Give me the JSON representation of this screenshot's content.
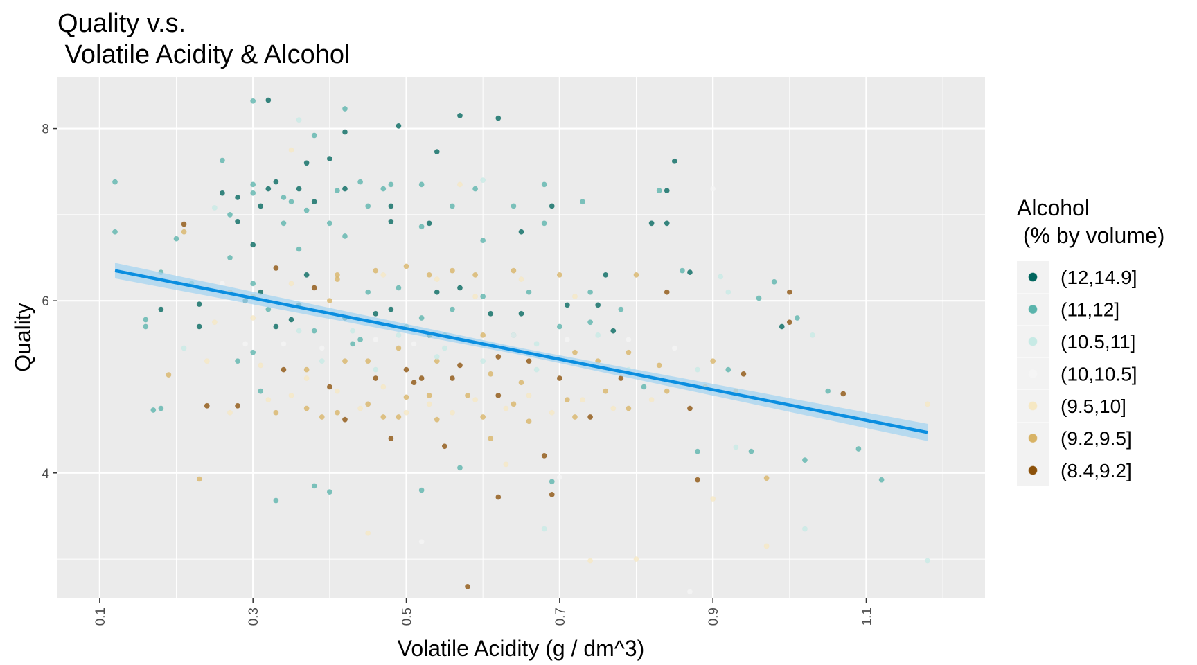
{
  "chart_data": {
    "type": "scatter",
    "title_line1": "Quality v.s.",
    "title_line2": " Volatile Acidity & Alcohol",
    "xlabel": "Volatile Acidity (g / dm^3)",
    "ylabel": "Quality",
    "xlim": [
      0.045,
      1.255
    ],
    "ylim": [
      2.55,
      8.6
    ],
    "x_ticks": [
      0.1,
      0.3,
      0.5,
      0.7,
      0.9,
      1.1
    ],
    "x_tick_labels": [
      "0.1",
      "0.3",
      "0.5",
      "0.7",
      "0.9",
      "1.1"
    ],
    "y_ticks": [
      4,
      6,
      8
    ],
    "y_tick_labels": [
      "4",
      "6",
      "8"
    ],
    "grid": true,
    "legend": {
      "title_line1": "Alcohol",
      "title_line2": " (% by volume)",
      "position": "right",
      "entries": [
        {
          "label": "(12,14.9]",
          "color": "#01665e"
        },
        {
          "label": "(11,12]",
          "color": "#5ab4ac"
        },
        {
          "label": "(10.5,11]",
          "color": "#c7eae5"
        },
        {
          "label": "(10,10.5]",
          "color": "#f5f5f5"
        },
        {
          "label": "(9.5,10]",
          "color": "#f6e8c3"
        },
        {
          "label": "(9.2,9.5]",
          "color": "#d8b365"
        },
        {
          "label": "(8.4,9.2]",
          "color": "#8c510a"
        }
      ]
    },
    "trend_line": {
      "color": "#0a8ee0",
      "band_color": "#a6d4f0",
      "x": [
        0.12,
        1.18
      ],
      "y": [
        6.35,
        4.47
      ],
      "band_halfwidth": [
        0.09,
        0.04,
        0.1
      ]
    },
    "points": [
      [
        0.12,
        7.38,
        1
      ],
      [
        0.12,
        6.8,
        1
      ],
      [
        0.16,
        5.7,
        1
      ],
      [
        0.16,
        5.78,
        1
      ],
      [
        0.18,
        6.33,
        1
      ],
      [
        0.18,
        4.75,
        1
      ],
      [
        0.18,
        5.9,
        0
      ],
      [
        0.17,
        4.73,
        1
      ],
      [
        0.2,
        6.72,
        1
      ],
      [
        0.21,
        6.89,
        6
      ],
      [
        0.21,
        6.8,
        5
      ],
      [
        0.22,
        6.2,
        1
      ],
      [
        0.19,
        5.14,
        5
      ],
      [
        0.23,
        5.96,
        0
      ],
      [
        0.23,
        5.7,
        0
      ],
      [
        0.24,
        4.78,
        6
      ],
      [
        0.23,
        3.93,
        5
      ],
      [
        0.26,
        7.63,
        1
      ],
      [
        0.25,
        7.08,
        2
      ],
      [
        0.26,
        7.25,
        0
      ],
      [
        0.27,
        7.0,
        1
      ],
      [
        0.28,
        6.92,
        0
      ],
      [
        0.28,
        7.2,
        0
      ],
      [
        0.27,
        6.5,
        1
      ],
      [
        0.27,
        6.1,
        5
      ],
      [
        0.28,
        5.3,
        1
      ],
      [
        0.28,
        4.78,
        6
      ],
      [
        0.3,
        8.32,
        1
      ],
      [
        0.32,
        8.33,
        0
      ],
      [
        0.3,
        7.35,
        1
      ],
      [
        0.31,
        7.1,
        0
      ],
      [
        0.3,
        7.25,
        1
      ],
      [
        0.32,
        7.3,
        0
      ],
      [
        0.33,
        7.38,
        0
      ],
      [
        0.34,
        7.2,
        1
      ],
      [
        0.34,
        6.9,
        1
      ],
      [
        0.3,
        6.65,
        0
      ],
      [
        0.33,
        6.38,
        6
      ],
      [
        0.3,
        6.2,
        1
      ],
      [
        0.31,
        6.1,
        0
      ],
      [
        0.32,
        5.9,
        1
      ],
      [
        0.33,
        5.7,
        0
      ],
      [
        0.29,
        6.0,
        0
      ],
      [
        0.3,
        5.4,
        1
      ],
      [
        0.31,
        4.95,
        1
      ],
      [
        0.33,
        4.7,
        5
      ],
      [
        0.33,
        3.68,
        1
      ],
      [
        0.34,
        5.2,
        6
      ],
      [
        0.36,
        8.1,
        2
      ],
      [
        0.37,
        7.6,
        0
      ],
      [
        0.38,
        7.92,
        1
      ],
      [
        0.35,
        7.15,
        1
      ],
      [
        0.36,
        7.3,
        0
      ],
      [
        0.37,
        7.05,
        1
      ],
      [
        0.38,
        7.15,
        0
      ],
      [
        0.36,
        6.6,
        1
      ],
      [
        0.37,
        6.3,
        0
      ],
      [
        0.38,
        6.15,
        6
      ],
      [
        0.36,
        5.95,
        0
      ],
      [
        0.35,
        5.78,
        0
      ],
      [
        0.38,
        5.65,
        1
      ],
      [
        0.37,
        5.2,
        5
      ],
      [
        0.37,
        4.75,
        5
      ],
      [
        0.39,
        4.65,
        5
      ],
      [
        0.38,
        3.85,
        1
      ],
      [
        0.4,
        7.65,
        0
      ],
      [
        0.41,
        7.28,
        1
      ],
      [
        0.42,
        7.3,
        0
      ],
      [
        0.4,
        6.9,
        1
      ],
      [
        0.42,
        6.75,
        1
      ],
      [
        0.41,
        6.3,
        5
      ],
      [
        0.4,
        6.0,
        5
      ],
      [
        0.42,
        5.8,
        0
      ],
      [
        0.43,
        5.5,
        1
      ],
      [
        0.42,
        5.3,
        5
      ],
      [
        0.4,
        5.0,
        6
      ],
      [
        0.41,
        4.7,
        5
      ],
      [
        0.42,
        4.62,
        6
      ],
      [
        0.4,
        3.78,
        1
      ],
      [
        0.42,
        8.23,
        1
      ],
      [
        0.42,
        7.96,
        0
      ],
      [
        0.44,
        7.38,
        1
      ],
      [
        0.45,
        7.1,
        1
      ],
      [
        0.46,
        6.35,
        5
      ],
      [
        0.45,
        6.1,
        1
      ],
      [
        0.46,
        5.85,
        0
      ],
      [
        0.44,
        5.55,
        1
      ],
      [
        0.45,
        5.3,
        5
      ],
      [
        0.46,
        5.1,
        6
      ],
      [
        0.45,
        4.8,
        5
      ],
      [
        0.47,
        4.65,
        5
      ],
      [
        0.47,
        7.3,
        1
      ],
      [
        0.48,
        7.35,
        1
      ],
      [
        0.48,
        7.1,
        0
      ],
      [
        0.48,
        6.92,
        0
      ],
      [
        0.49,
        8.03,
        0
      ],
      [
        0.5,
        6.4,
        5
      ],
      [
        0.49,
        6.15,
        1
      ],
      [
        0.48,
        5.9,
        0
      ],
      [
        0.5,
        5.7,
        1
      ],
      [
        0.49,
        5.45,
        5
      ],
      [
        0.5,
        5.2,
        6
      ],
      [
        0.51,
        5.05,
        6
      ],
      [
        0.5,
        4.88,
        5
      ],
      [
        0.49,
        4.65,
        5
      ],
      [
        0.48,
        4.4,
        6
      ],
      [
        0.52,
        7.35,
        1
      ],
      [
        0.53,
        6.9,
        0
      ],
      [
        0.52,
        6.86,
        1
      ],
      [
        0.53,
        6.3,
        5
      ],
      [
        0.54,
        6.1,
        0
      ],
      [
        0.52,
        5.8,
        1
      ],
      [
        0.53,
        5.6,
        0
      ],
      [
        0.54,
        5.3,
        5
      ],
      [
        0.52,
        5.1,
        6
      ],
      [
        0.53,
        4.9,
        5
      ],
      [
        0.54,
        4.62,
        5
      ],
      [
        0.52,
        3.8,
        1
      ],
      [
        0.54,
        7.73,
        0
      ],
      [
        0.56,
        7.1,
        1
      ],
      [
        0.57,
        8.15,
        0
      ],
      [
        0.56,
        6.35,
        5
      ],
      [
        0.57,
        6.15,
        0
      ],
      [
        0.56,
        5.9,
        1
      ],
      [
        0.55,
        5.6,
        1
      ],
      [
        0.57,
        5.25,
        6
      ],
      [
        0.56,
        5.1,
        6
      ],
      [
        0.58,
        4.9,
        5
      ],
      [
        0.55,
        4.31,
        6
      ],
      [
        0.58,
        2.68,
        6
      ],
      [
        0.57,
        4.06,
        1
      ],
      [
        0.59,
        7.3,
        1
      ],
      [
        0.6,
        6.7,
        1
      ],
      [
        0.59,
        6.3,
        5
      ],
      [
        0.6,
        6.05,
        1
      ],
      [
        0.61,
        5.85,
        0
      ],
      [
        0.62,
        8.12,
        0
      ],
      [
        0.6,
        5.6,
        5
      ],
      [
        0.62,
        5.35,
        6
      ],
      [
        0.61,
        5.15,
        5
      ],
      [
        0.62,
        4.9,
        6
      ],
      [
        0.6,
        4.65,
        5
      ],
      [
        0.61,
        4.4,
        5
      ],
      [
        0.62,
        3.72,
        6
      ],
      [
        0.64,
        7.1,
        1
      ],
      [
        0.65,
        6.8,
        0
      ],
      [
        0.64,
        6.35,
        5
      ],
      [
        0.66,
        6.1,
        1
      ],
      [
        0.65,
        5.85,
        0
      ],
      [
        0.64,
        5.6,
        1
      ],
      [
        0.66,
        5.3,
        6
      ],
      [
        0.65,
        5.05,
        5
      ],
      [
        0.64,
        4.8,
        5
      ],
      [
        0.66,
        4.6,
        5
      ],
      [
        0.68,
        7.35,
        1
      ],
      [
        0.69,
        7.1,
        0
      ],
      [
        0.68,
        6.9,
        1
      ],
      [
        0.68,
        4.2,
        6
      ],
      [
        0.69,
        3.75,
        6
      ],
      [
        0.69,
        3.9,
        1
      ],
      [
        0.7,
        6.3,
        5
      ],
      [
        0.71,
        5.95,
        0
      ],
      [
        0.7,
        5.7,
        1
      ],
      [
        0.72,
        5.4,
        5
      ],
      [
        0.7,
        5.1,
        6
      ],
      [
        0.71,
        4.85,
        5
      ],
      [
        0.72,
        4.65,
        5
      ],
      [
        0.73,
        7.15,
        1
      ],
      [
        0.74,
        6.1,
        1
      ],
      [
        0.75,
        5.95,
        0
      ],
      [
        0.74,
        5.75,
        1
      ],
      [
        0.75,
        5.3,
        5
      ],
      [
        0.76,
        4.95,
        5
      ],
      [
        0.74,
        4.65,
        6
      ],
      [
        0.76,
        6.3,
        0
      ],
      [
        0.77,
        5.65,
        0
      ],
      [
        0.78,
        5.9,
        1
      ],
      [
        0.79,
        5.4,
        5
      ],
      [
        0.78,
        5.1,
        6
      ],
      [
        0.79,
        4.75,
        5
      ],
      [
        0.8,
        6.3,
        5
      ],
      [
        0.81,
        5.0,
        1
      ],
      [
        0.82,
        6.9,
        0
      ],
      [
        0.83,
        7.28,
        1
      ],
      [
        0.84,
        7.28,
        0
      ],
      [
        0.84,
        6.9,
        0
      ],
      [
        0.85,
        7.62,
        0
      ],
      [
        0.84,
        6.1,
        6
      ],
      [
        0.83,
        5.25,
        5
      ],
      [
        0.84,
        4.95,
        5
      ],
      [
        0.86,
        6.35,
        1
      ],
      [
        0.87,
        6.33,
        0
      ],
      [
        0.87,
        4.75,
        6
      ],
      [
        0.88,
        4.25,
        1
      ],
      [
        0.88,
        3.92,
        6
      ],
      [
        0.89,
        5.0,
        5
      ],
      [
        0.9,
        5.3,
        5
      ],
      [
        0.91,
        6.28,
        2
      ],
      [
        0.92,
        6.1,
        2
      ],
      [
        0.92,
        5.2,
        1
      ],
      [
        0.93,
        4.95,
        5
      ],
      [
        0.94,
        5.15,
        6
      ],
      [
        0.95,
        4.25,
        1
      ],
      [
        0.96,
        6.03,
        1
      ],
      [
        0.97,
        3.94,
        5
      ],
      [
        0.98,
        6.22,
        1
      ],
      [
        0.99,
        5.7,
        0
      ],
      [
        1.0,
        6.1,
        6
      ],
      [
        1.0,
        5.75,
        6
      ],
      [
        1.01,
        5.8,
        1
      ],
      [
        1.02,
        4.15,
        1
      ],
      [
        1.03,
        5.6,
        2
      ],
      [
        1.05,
        4.95,
        1
      ],
      [
        1.07,
        4.92,
        6
      ],
      [
        1.09,
        4.28,
        1
      ],
      [
        1.12,
        3.92,
        1
      ],
      [
        1.18,
        2.98,
        2
      ],
      [
        1.18,
        4.8,
        4
      ],
      [
        0.21,
        5.45,
        2
      ],
      [
        0.24,
        5.3,
        4
      ],
      [
        0.25,
        5.75,
        4
      ],
      [
        0.26,
        6.2,
        3
      ],
      [
        0.27,
        4.7,
        4
      ],
      [
        0.29,
        5.5,
        3
      ],
      [
        0.31,
        5.25,
        4
      ],
      [
        0.32,
        4.85,
        4
      ],
      [
        0.34,
        5.5,
        3
      ],
      [
        0.35,
        4.9,
        4
      ],
      [
        0.36,
        5.65,
        2
      ],
      [
        0.37,
        5.1,
        4
      ],
      [
        0.39,
        5.45,
        3
      ],
      [
        0.41,
        4.95,
        4
      ],
      [
        0.43,
        5.65,
        2
      ],
      [
        0.44,
        4.75,
        4
      ],
      [
        0.46,
        5.55,
        3
      ],
      [
        0.47,
        5.0,
        4
      ],
      [
        0.49,
        5.6,
        2
      ],
      [
        0.5,
        4.7,
        4
      ],
      [
        0.51,
        5.5,
        3
      ],
      [
        0.53,
        4.8,
        4
      ],
      [
        0.55,
        5.45,
        2
      ],
      [
        0.56,
        4.7,
        4
      ],
      [
        0.58,
        5.55,
        3
      ],
      [
        0.59,
        4.85,
        4
      ],
      [
        0.61,
        5.5,
        2
      ],
      [
        0.63,
        4.75,
        4
      ],
      [
        0.64,
        5.6,
        3
      ],
      [
        0.66,
        4.9,
        4
      ],
      [
        0.67,
        5.5,
        2
      ],
      [
        0.69,
        4.7,
        4
      ],
      [
        0.71,
        5.55,
        3
      ],
      [
        0.73,
        4.85,
        4
      ],
      [
        0.75,
        5.6,
        2
      ],
      [
        0.77,
        4.75,
        4
      ],
      [
        0.79,
        5.55,
        3
      ],
      [
        0.82,
        4.85,
        4
      ],
      [
        0.85,
        5.45,
        3
      ],
      [
        0.88,
        5.2,
        2
      ],
      [
        0.9,
        3.7,
        4
      ],
      [
        0.93,
        4.3,
        2
      ],
      [
        0.97,
        3.15,
        4
      ],
      [
        1.02,
        3.35,
        2
      ],
      [
        0.87,
        2.62,
        3
      ],
      [
        0.8,
        3.0,
        4
      ],
      [
        0.74,
        2.98,
        4
      ],
      [
        0.45,
        3.3,
        4
      ],
      [
        0.52,
        3.2,
        3
      ],
      [
        0.68,
        3.35,
        2
      ],
      [
        0.3,
        6.05,
        5
      ],
      [
        0.35,
        6.2,
        4
      ],
      [
        0.41,
        6.25,
        5
      ],
      [
        0.47,
        6.3,
        4
      ],
      [
        0.54,
        6.25,
        4
      ],
      [
        0.59,
        6.05,
        4
      ],
      [
        0.65,
        6.25,
        4
      ],
      [
        0.72,
        6.05,
        4
      ],
      [
        0.3,
        5.8,
        4
      ],
      [
        0.39,
        5.3,
        2
      ],
      [
        0.46,
        5.2,
        2
      ],
      [
        0.54,
        5.35,
        2
      ],
      [
        0.6,
        5.3,
        2
      ],
      [
        0.67,
        5.2,
        2
      ],
      [
        0.79,
        5.2,
        2
      ],
      [
        0.57,
        7.35,
        4
      ],
      [
        0.6,
        7.4,
        2
      ],
      [
        0.35,
        7.75,
        4
      ],
      [
        0.9,
        7.3,
        3
      ],
      [
        0.63,
        4.1,
        4
      ],
      [
        0.7,
        3.95,
        3
      ]
    ]
  }
}
